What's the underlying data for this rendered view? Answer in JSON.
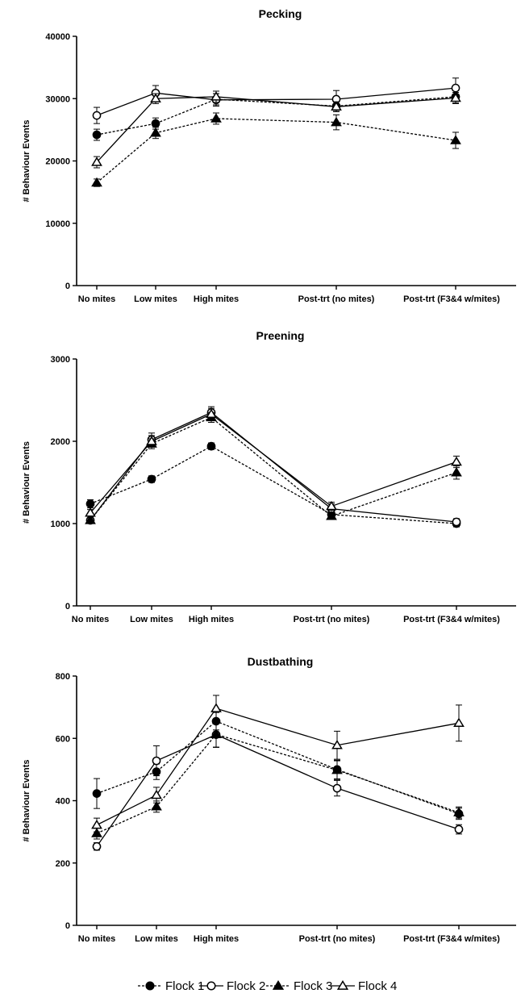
{
  "chart_data": [
    {
      "type": "line",
      "title": "Pecking",
      "ylabel": "# Behaviour Events",
      "xlabel": "",
      "categories": [
        "No mites",
        "Low mites",
        "High mites",
        "Post-trt (no mites)",
        "Post-trt (F3&4 w/mites)"
      ],
      "x": [
        0,
        1,
        2,
        4,
        6
      ],
      "ylim": [
        0,
        40000
      ],
      "yticks": [
        "0",
        "10000",
        "20000",
        "30000",
        "40000"
      ],
      "series": [
        {
          "name": "Flock 1",
          "values": [
            24200,
            26000,
            29900,
            28800,
            30300
          ],
          "errors": [
            900,
            900,
            900,
            700,
            1000
          ]
        },
        {
          "name": "Flock 2",
          "values": [
            27300,
            30900,
            29800,
            29900,
            31700
          ],
          "errors": [
            1300,
            1200,
            1000,
            1400,
            1600
          ]
        },
        {
          "name": "Flock 3",
          "values": [
            16500,
            24500,
            26800,
            26200,
            23300
          ],
          "errors": [
            600,
            900,
            900,
            1200,
            1300
          ]
        },
        {
          "name": "Flock 4",
          "values": [
            19800,
            30000,
            30300,
            28700,
            30100
          ],
          "errors": [
            900,
            800,
            900,
            800,
            900
          ]
        }
      ]
    },
    {
      "type": "line",
      "title": "Preening",
      "ylabel": "# Behaviour Events",
      "xlabel": "",
      "categories": [
        "No mites",
        "Low mites",
        "High mites",
        "Post-trt (no mites)",
        "Post-trt (F3&4 w/mites)"
      ],
      "x": [
        0,
        1,
        2,
        4,
        6
      ],
      "ylim": [
        0,
        3000
      ],
      "yticks": [
        "0",
        "1000",
        "2000",
        "3000"
      ],
      "series": [
        {
          "name": "Flock 1",
          "values": [
            1240,
            1540,
            1940,
            1110,
            1000
          ],
          "errors": [
            50,
            40,
            40,
            40,
            40
          ]
        },
        {
          "name": "Flock 2",
          "values": [
            1040,
            2020,
            2350,
            1180,
            1020
          ],
          "errors": [
            30,
            80,
            70,
            60,
            40
          ]
        },
        {
          "name": "Flock 3",
          "values": [
            1040,
            1970,
            2290,
            1090,
            1620
          ],
          "errors": [
            30,
            60,
            60,
            40,
            80
          ]
        },
        {
          "name": "Flock 4",
          "values": [
            1130,
            2000,
            2330,
            1210,
            1750
          ],
          "errors": [
            40,
            70,
            70,
            50,
            70
          ]
        }
      ]
    },
    {
      "type": "line",
      "title": "Dustbathing",
      "ylabel": "# Behaviour Events",
      "xlabel": "",
      "categories": [
        "No mites",
        "Low mites",
        "High mites",
        "Post-trt (no mites)",
        "Post-trt (F3&4 w/mites)"
      ],
      "x": [
        0,
        1,
        2,
        4,
        6
      ],
      "ylim": [
        0,
        800
      ],
      "yticks": [
        "0",
        "200",
        "400",
        "600",
        "800"
      ],
      "series": [
        {
          "name": "Flock 1",
          "values": [
            423,
            493,
            655,
            500,
            358
          ],
          "errors": [
            48,
            25,
            28,
            30,
            18
          ]
        },
        {
          "name": "Flock 2",
          "values": [
            253,
            528,
            612,
            440,
            308
          ],
          "errors": [
            12,
            48,
            40,
            25,
            15
          ]
        },
        {
          "name": "Flock 3",
          "values": [
            295,
            381,
            613,
            498,
            362
          ],
          "errors": [
            18,
            18,
            42,
            30,
            18
          ]
        },
        {
          "name": "Flock 4",
          "values": [
            322,
            418,
            696,
            578,
            649
          ],
          "errors": [
            22,
            25,
            42,
            45,
            58
          ]
        }
      ]
    }
  ],
  "legend": {
    "position": "bottom",
    "entries": [
      {
        "name": "Flock 1",
        "marker": "filled-circle",
        "dash": true
      },
      {
        "name": "Flock 2",
        "marker": "open-circle",
        "dash": false
      },
      {
        "name": "Flock 3",
        "marker": "filled-triangle",
        "dash": true
      },
      {
        "name": "Flock 4",
        "marker": "open-triangle",
        "dash": false
      }
    ]
  },
  "colors": {
    "ink": "#000000",
    "background": "#ffffff"
  }
}
